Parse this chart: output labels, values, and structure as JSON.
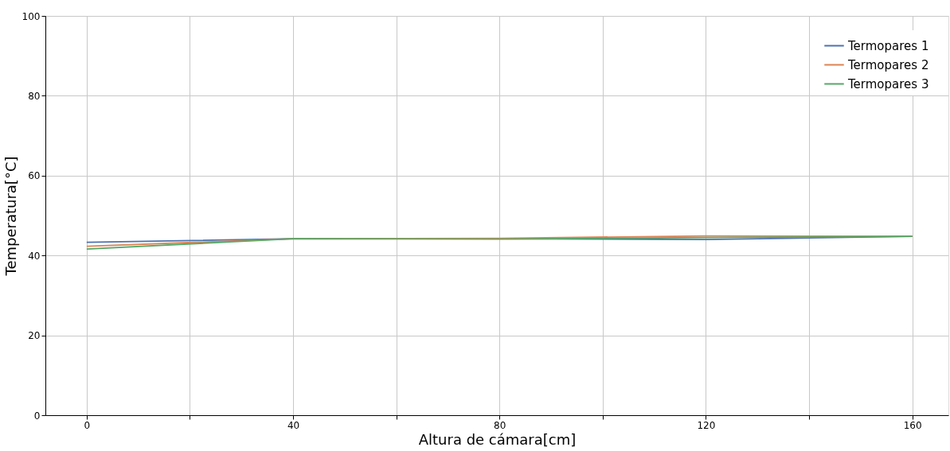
{
  "chart_data": {
    "type": "line",
    "xlabel": "Altura de cámara[cm]",
    "ylabel": "Temperatura[°C]",
    "x": [
      0,
      40,
      80,
      120,
      160
    ],
    "series": [
      {
        "name": "Termopares 1",
        "color": "#4c72b0",
        "values": [
          43.3,
          44.2,
          44.2,
          44.0,
          44.8
        ]
      },
      {
        "name": "Termopares 2",
        "color": "#dd8452",
        "values": [
          42.3,
          44.2,
          44.3,
          44.9,
          44.8
        ]
      },
      {
        "name": "Termopares 3",
        "color": "#55a868",
        "values": [
          41.6,
          44.2,
          44.1,
          44.5,
          44.8
        ]
      }
    ],
    "xlim": [
      -8,
      167
    ],
    "xticks": [
      0,
      {
        "value": 20,
        "label": null
      },
      40,
      {
        "value": 60,
        "label": null
      },
      80,
      {
        "value": 100,
        "label": null
      },
      120,
      {
        "value": 140,
        "label": null
      },
      160
    ],
    "ylim": [
      0,
      100
    ],
    "yticks": [
      0,
      20,
      40,
      60,
      80,
      100
    ],
    "grid": true,
    "legend": "top right",
    "marker": "none",
    "line_style": "solid"
  }
}
